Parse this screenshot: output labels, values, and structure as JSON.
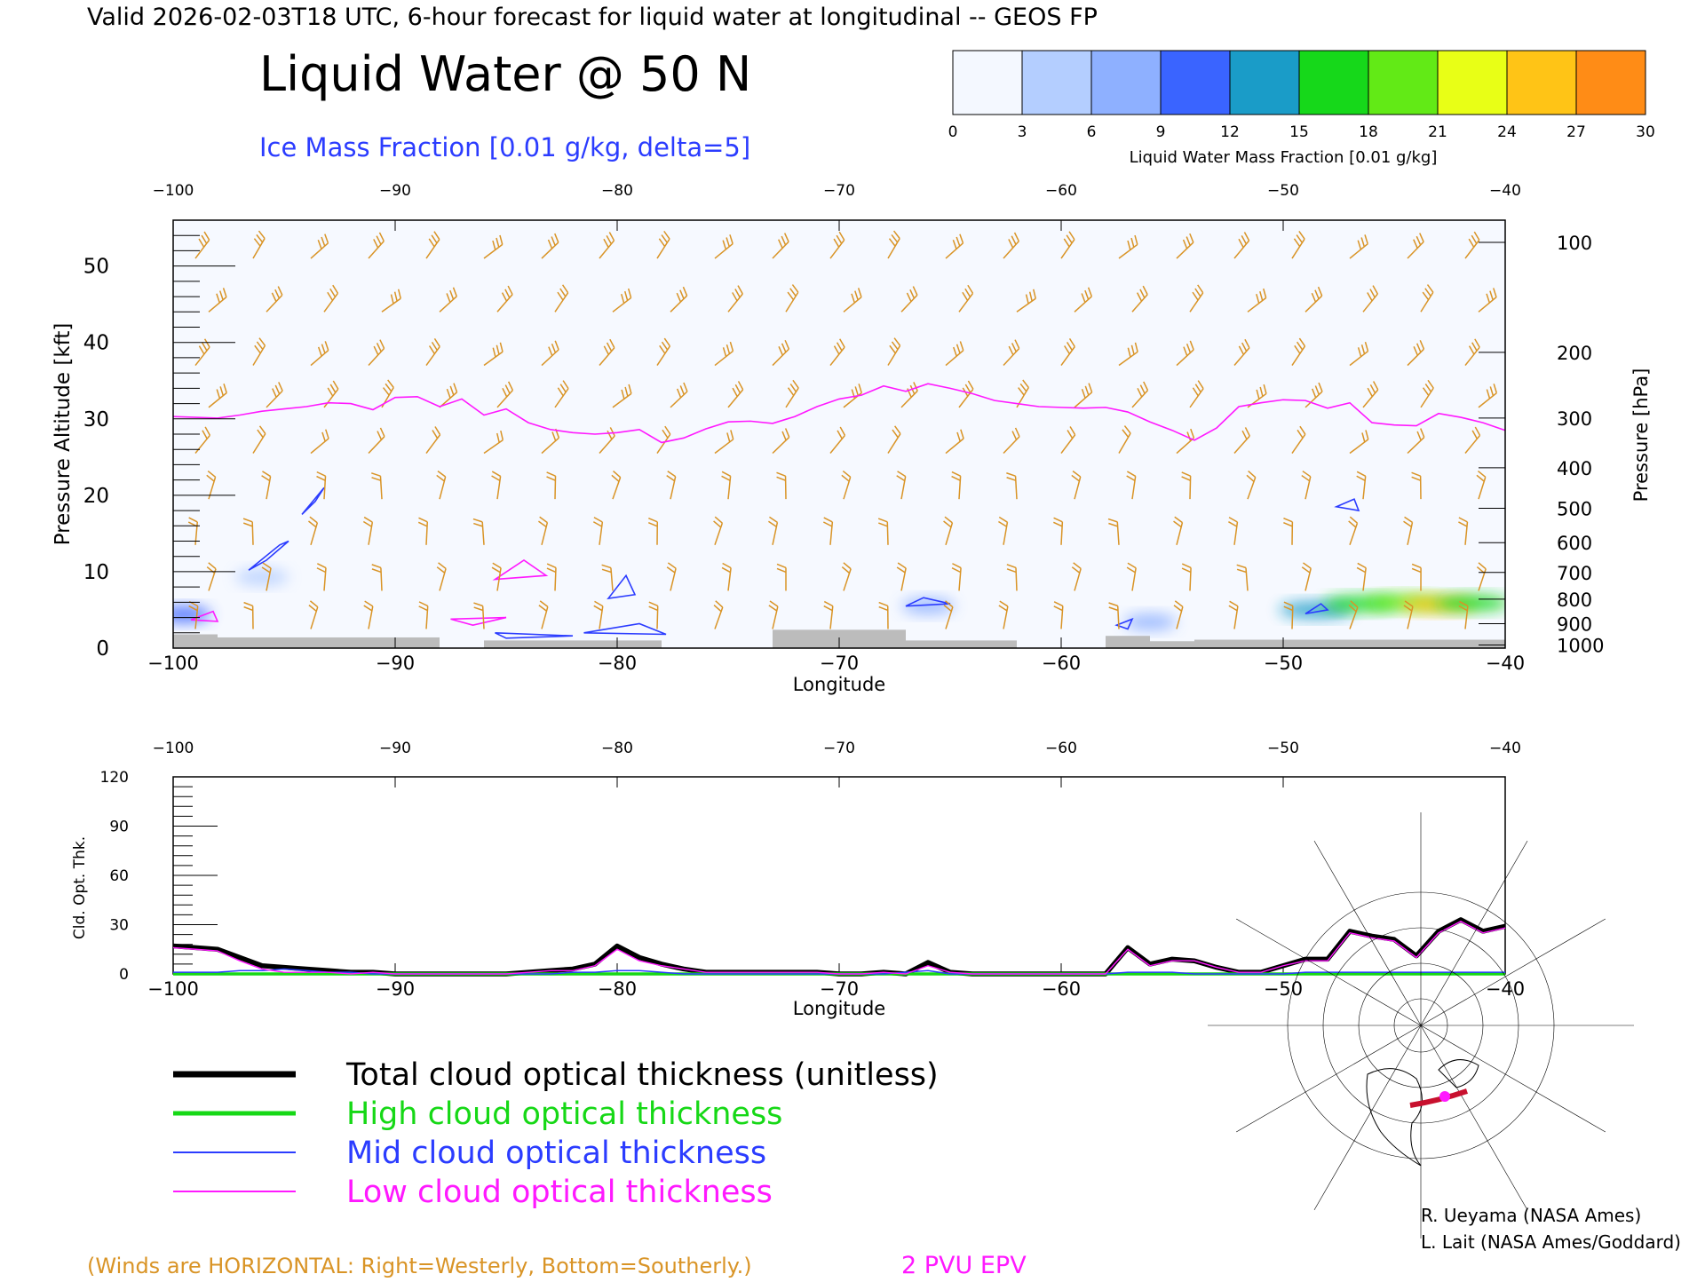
{
  "header": {
    "valid_line": "Valid 2026-02-03T18 UTC, 6-hour forecast for liquid water at longitudinal -- GEOS FP",
    "title": "Liquid Water @ 50 N",
    "ice_label": "Ice Mass Fraction [0.01 g/kg, delta=5]"
  },
  "colorbar": {
    "ticks": [
      "0",
      "3",
      "6",
      "9",
      "12",
      "15",
      "18",
      "21",
      "24",
      "27",
      "30"
    ],
    "label": "Liquid Water Mass Fraction [0.01 g/kg]",
    "colors": [
      "#f4f8ff",
      "#b4ceff",
      "#8eb0ff",
      "#3a64ff",
      "#1a9cc8",
      "#16d81a",
      "#62ea16",
      "#e8ff16",
      "#ffc416",
      "#ff8c16"
    ]
  },
  "colors": {
    "wind": "#d99426",
    "epv": "#ff19ff",
    "ice": "#2b3cff",
    "terrain": "#bcbcbc",
    "total": "#000000",
    "high": "#16d816",
    "mid": "#2b3cff",
    "low": "#ff19ff"
  },
  "chart_data": [
    {
      "type": "heatmap",
      "title": "Liquid Water @ 50 N",
      "xlabel": "Longitude",
      "ylabel": "Pressure Altitude [kft]",
      "ylabel_right": "Pressure [hPa]",
      "xlim": [
        -100,
        -40
      ],
      "ylim": [
        0,
        56
      ],
      "x_ticks": [
        "−100",
        "−90",
        "−80",
        "−70",
        "−60",
        "−50",
        "−40"
      ],
      "y_ticks": [
        "0",
        "10",
        "20",
        "30",
        "40",
        "50"
      ],
      "pressure_ticks": [
        "100",
        "200",
        "300",
        "400",
        "500",
        "600",
        "700",
        "800",
        "900",
        "1000"
      ],
      "pressure_tick_kft": [
        53.1,
        38.7,
        30.1,
        23.6,
        18.3,
        13.8,
        9.9,
        6.4,
        3.2,
        0.4
      ],
      "epv_2pvu_line": {
        "lon": [
          -100,
          -99,
          -98,
          -97,
          -96,
          -95,
          -94,
          -93,
          -92,
          -91,
          -90,
          -89,
          -88,
          -87,
          -86,
          -85,
          -84,
          -83,
          -82,
          -81,
          -80,
          -79,
          -78,
          -77,
          -76,
          -75,
          -74,
          -73,
          -72,
          -71,
          -70,
          -69,
          -68,
          -67,
          -66,
          -65,
          -64,
          -63,
          -62,
          -61,
          -60,
          -59,
          -58,
          -57,
          -56,
          -55,
          -54,
          -53,
          -52,
          -51,
          -50,
          -49,
          -48,
          -47,
          -46,
          -45,
          -44,
          -43,
          -42,
          -41,
          -40
        ],
        "kft": [
          30.3,
          30.2,
          30.1,
          30.5,
          31.0,
          31.3,
          31.6,
          32.1,
          32.0,
          31.2,
          32.8,
          32.9,
          31.6,
          32.6,
          30.5,
          31.3,
          29.5,
          28.6,
          28.2,
          28.0,
          28.2,
          28.6,
          26.9,
          27.5,
          28.7,
          29.6,
          29.7,
          29.4,
          30.3,
          31.6,
          32.6,
          33.1,
          34.3,
          33.6,
          34.6,
          34.0,
          33.3,
          32.4,
          32.0,
          31.6,
          31.5,
          31.4,
          31.5,
          30.9,
          29.6,
          28.5,
          27.2,
          28.8,
          31.6,
          32.1,
          32.5,
          32.4,
          31.4,
          32.1,
          29.5,
          29.2,
          29.1,
          30.7,
          30.2,
          29.5,
          28.5
        ]
      },
      "liquid_water_blobs": [
        {
          "lon": -99.5,
          "kft": 4.4,
          "value": 10
        },
        {
          "lon": -96.0,
          "kft": 9.3,
          "value": 3
        },
        {
          "lon": -66.0,
          "kft": 5.5,
          "value": 8
        },
        {
          "lon": -56.0,
          "kft": 3.4,
          "value": 7
        },
        {
          "lon": -48.5,
          "kft": 5.0,
          "value": 13
        },
        {
          "lon": -46.5,
          "kft": 5.8,
          "value": 15
        },
        {
          "lon": -44.5,
          "kft": 6.0,
          "value": 19
        },
        {
          "lon": -43.0,
          "kft": 5.7,
          "value": 25
        },
        {
          "lon": -41.5,
          "kft": 5.9,
          "value": 15
        }
      ],
      "winds_note": "(Winds are HORIZONTAL: Right=Westerly, Bottom=Southerly.)",
      "epv_label": "2 PVU EPV"
    },
    {
      "type": "line",
      "xlabel": "Longitude",
      "ylabel": "Cld. Opt. Thk.",
      "xlim": [
        -100,
        -40
      ],
      "ylim": [
        0,
        120
      ],
      "x_ticks": [
        "−100",
        "−90",
        "−80",
        "−70",
        "−60",
        "−50",
        "−40"
      ],
      "y_ticks": [
        "0",
        "30",
        "60",
        "90",
        "120"
      ],
      "x": [
        -100,
        -99,
        -98,
        -97,
        -96,
        -95,
        -94,
        -93,
        -92,
        -91,
        -90,
        -89,
        -88,
        -87,
        -86,
        -85,
        -84,
        -83,
        -82,
        -81,
        -80,
        -79,
        -78,
        -77,
        -76,
        -75,
        -74,
        -73,
        -72,
        -71,
        -70,
        -69,
        -68,
        -67,
        -66,
        -65,
        -64,
        -63,
        -62,
        -61,
        -60,
        -59,
        -58,
        -57,
        -56,
        -55,
        -54,
        -53,
        -52,
        -51,
        -50,
        -49,
        -48,
        -47,
        -46,
        -45,
        -44,
        -43,
        -42,
        -41,
        -40
      ],
      "series": [
        {
          "name": "Total cloud optical thickness (unitless)",
          "values": [
            17,
            16,
            15,
            10,
            5,
            4,
            3,
            2,
            1,
            1,
            0,
            0,
            0,
            0,
            0,
            0,
            1,
            2,
            3,
            6,
            17,
            10,
            6,
            3,
            1,
            1,
            1,
            1,
            1,
            1,
            0,
            0,
            1,
            0,
            7,
            1,
            0,
            0,
            0,
            0,
            0,
            0,
            0,
            16,
            6,
            9,
            8,
            4,
            1,
            1,
            5,
            9,
            9,
            26,
            23,
            21,
            11,
            26,
            33,
            26,
            29
          ]
        },
        {
          "name": "High cloud optical thickness",
          "values": [
            0,
            0,
            0,
            0,
            0,
            0,
            0,
            0,
            0,
            0,
            0,
            0,
            0,
            0,
            0,
            0,
            0,
            0,
            0,
            0,
            0,
            0,
            0,
            0,
            0,
            0,
            0,
            0,
            0,
            0,
            0,
            0,
            0,
            0,
            0,
            0,
            0,
            0,
            0,
            0,
            0,
            0,
            0,
            0,
            0,
            0,
            0,
            0,
            0,
            0,
            0,
            0,
            0,
            0,
            0,
            0,
            0,
            0,
            0,
            0,
            0
          ]
        },
        {
          "name": "Mid cloud optical thickness",
          "values": [
            1,
            1,
            1,
            2,
            2,
            3,
            2,
            1,
            1,
            0,
            0,
            0,
            0,
            0,
            0,
            0,
            0,
            0,
            1,
            1,
            2,
            2,
            1,
            0,
            0,
            0,
            0,
            0,
            0,
            0,
            0,
            0,
            0,
            1,
            2,
            0,
            0,
            0,
            0,
            0,
            0,
            0,
            0,
            1,
            1,
            1,
            0,
            0,
            0,
            0,
            0,
            1,
            1,
            1,
            1,
            1,
            1,
            1,
            1,
            1,
            1
          ]
        },
        {
          "name": "Low cloud optical thickness",
          "values": [
            16,
            15,
            14,
            8,
            3,
            1,
            1,
            1,
            0,
            1,
            0,
            0,
            0,
            0,
            0,
            0,
            1,
            2,
            2,
            5,
            15,
            8,
            5,
            3,
            1,
            1,
            1,
            1,
            1,
            1,
            0,
            0,
            1,
            0,
            5,
            1,
            0,
            0,
            0,
            0,
            0,
            0,
            0,
            15,
            5,
            8,
            8,
            4,
            1,
            1,
            5,
            8,
            8,
            25,
            22,
            20,
            10,
            25,
            32,
            25,
            28
          ]
        }
      ]
    }
  ],
  "legend": {
    "items": [
      {
        "label": "Total cloud optical thickness (unitless)",
        "color": "#000000"
      },
      {
        "label": "High cloud optical thickness",
        "color": "#16d816"
      },
      {
        "label": "Mid cloud optical thickness",
        "color": "#2b3cff"
      },
      {
        "label": "Low cloud optical thickness",
        "color": "#ff19ff"
      }
    ]
  },
  "credits": {
    "line1": "R. Ueyama (NASA Ames)",
    "line2": "L. Lait (NASA Ames/Goddard)"
  }
}
